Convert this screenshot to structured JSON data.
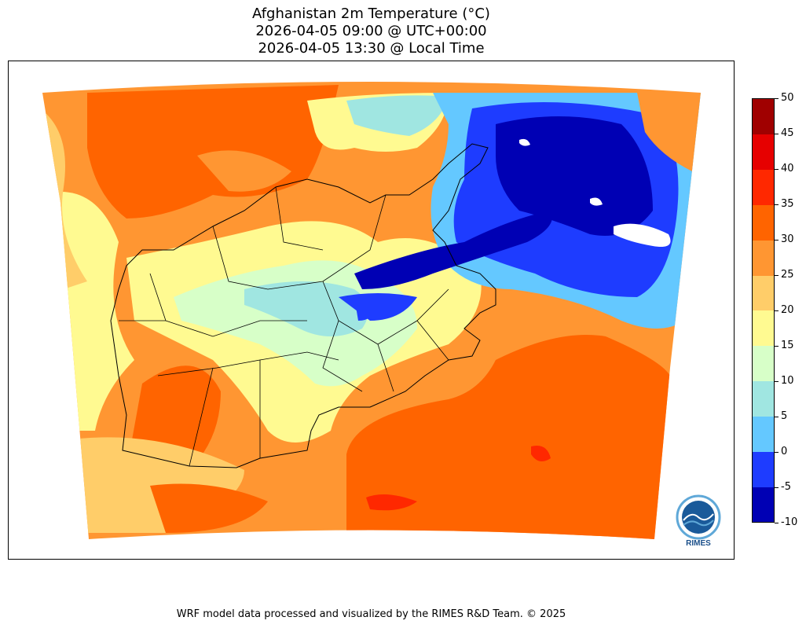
{
  "title": {
    "line1": "Afghanistan 2m Temperature (°C)",
    "line2": "2026-04-05 09:00 @ UTC+00:00",
    "line3": "2026-04-05 13:30 @ Local Time"
  },
  "colorbar": {
    "levels": [
      {
        "min": -10,
        "max": -5,
        "color": "#0000b4"
      },
      {
        "min": -5,
        "max": 0,
        "color": "#1e3cff"
      },
      {
        "min": 0,
        "max": 5,
        "color": "#64c8ff"
      },
      {
        "min": 5,
        "max": 10,
        "color": "#a0e6e1"
      },
      {
        "min": 10,
        "max": 15,
        "color": "#d7ffc8"
      },
      {
        "min": 15,
        "max": 20,
        "color": "#fffa91"
      },
      {
        "min": 20,
        "max": 25,
        "color": "#ffcd69"
      },
      {
        "min": 25,
        "max": 30,
        "color": "#ff9632"
      },
      {
        "min": 30,
        "max": 35,
        "color": "#ff6400"
      },
      {
        "min": 35,
        "max": 40,
        "color": "#ff2800"
      },
      {
        "min": 40,
        "max": 45,
        "color": "#e60000"
      },
      {
        "min": 45,
        "max": 50,
        "color": "#a00000"
      }
    ],
    "tick_labels": [
      "50",
      "45",
      "40",
      "35",
      "30",
      "25",
      "20",
      "15",
      "10",
      "5",
      "0",
      "-5",
      "-10"
    ]
  },
  "logo": {
    "text": "RIMES",
    "colors": {
      "primary": "#1a5a9a",
      "light": "#5fa8d8"
    }
  },
  "footer": "WRF model data processed and visualized by the RIMES R&D Team. © 2025"
}
